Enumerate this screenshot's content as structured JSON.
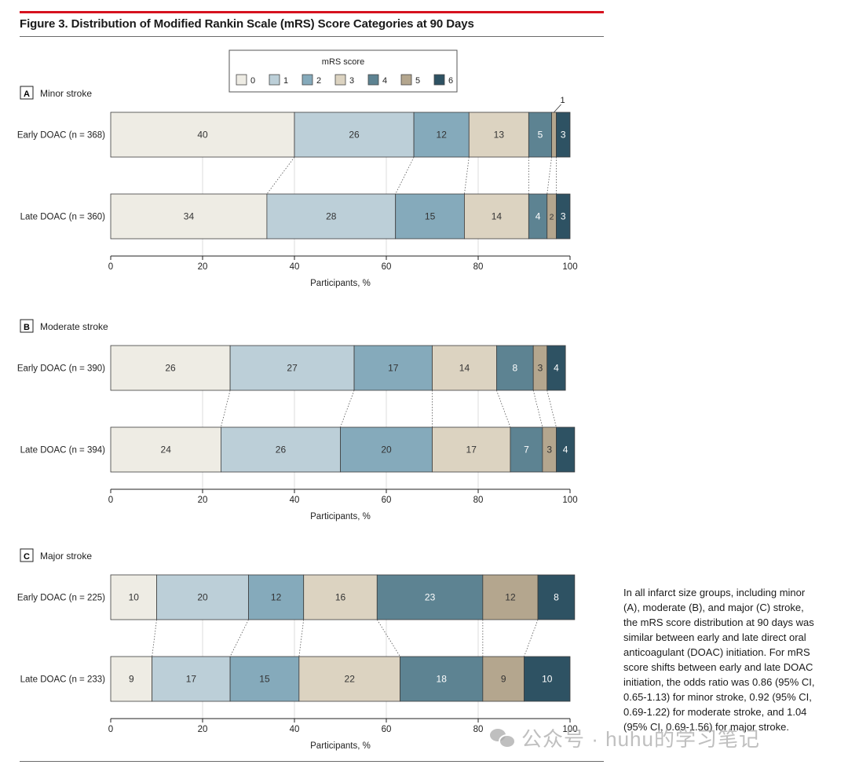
{
  "figure": {
    "title": "Figure 3. Distribution of Modified Rankin Scale (mRS) Score Categories at 90 Days"
  },
  "legend": {
    "title": "mRS score",
    "items": [
      {
        "label": "0",
        "color": "#eeece4"
      },
      {
        "label": "1",
        "color": "#bccfd8"
      },
      {
        "label": "2",
        "color": "#85aabb"
      },
      {
        "label": "3",
        "color": "#dcd3c1"
      },
      {
        "label": "4",
        "color": "#5d8392"
      },
      {
        "label": "5",
        "color": "#b4a68e"
      },
      {
        "label": "6",
        "color": "#2e5263"
      }
    ]
  },
  "chart_data": [
    {
      "type": "bar",
      "orientation": "horizontal",
      "stacked": true,
      "panel_letter": "A",
      "panel_title": "Minor stroke",
      "categories": [
        "Early DOAC (n = 368)",
        "Late DOAC (n = 360)"
      ],
      "series": [
        {
          "name": "0",
          "values": [
            40,
            34
          ]
        },
        {
          "name": "1",
          "values": [
            26,
            28
          ]
        },
        {
          "name": "2",
          "values": [
            12,
            15
          ]
        },
        {
          "name": "3",
          "values": [
            13,
            14
          ]
        },
        {
          "name": "4",
          "values": [
            5,
            4
          ]
        },
        {
          "name": "5",
          "values": [
            1,
            2
          ]
        },
        {
          "name": "6",
          "values": [
            3,
            3
          ]
        }
      ],
      "annotations": [
        {
          "text": "1",
          "series": "5",
          "category": "Early DOAC (n = 368)"
        }
      ],
      "xlabel": "Participants, %",
      "xlim": [
        0,
        100
      ],
      "xticks": [
        0,
        20,
        40,
        60,
        80,
        100
      ]
    },
    {
      "type": "bar",
      "orientation": "horizontal",
      "stacked": true,
      "panel_letter": "B",
      "panel_title": "Moderate stroke",
      "categories": [
        "Early DOAC (n = 390)",
        "Late DOAC (n = 394)"
      ],
      "series": [
        {
          "name": "0",
          "values": [
            26,
            24
          ]
        },
        {
          "name": "1",
          "values": [
            27,
            26
          ]
        },
        {
          "name": "2",
          "values": [
            17,
            20
          ]
        },
        {
          "name": "3",
          "values": [
            14,
            17
          ]
        },
        {
          "name": "4",
          "values": [
            8,
            7
          ]
        },
        {
          "name": "5",
          "values": [
            3,
            3
          ]
        },
        {
          "name": "6",
          "values": [
            4,
            4
          ]
        }
      ],
      "xlabel": "Participants, %",
      "xlim": [
        0,
        100
      ],
      "xticks": [
        0,
        20,
        40,
        60,
        80,
        100
      ]
    },
    {
      "type": "bar",
      "orientation": "horizontal",
      "stacked": true,
      "panel_letter": "C",
      "panel_title": "Major stroke",
      "categories": [
        "Early DOAC (n = 225)",
        "Late DOAC (n = 233)"
      ],
      "series": [
        {
          "name": "0",
          "values": [
            10,
            9
          ]
        },
        {
          "name": "1",
          "values": [
            20,
            17
          ]
        },
        {
          "name": "2",
          "values": [
            12,
            15
          ]
        },
        {
          "name": "3",
          "values": [
            16,
            22
          ]
        },
        {
          "name": "4",
          "values": [
            23,
            18
          ]
        },
        {
          "name": "5",
          "values": [
            12,
            9
          ]
        },
        {
          "name": "6",
          "values": [
            8,
            10
          ]
        }
      ],
      "xlabel": "Participants, %",
      "xlim": [
        0,
        100
      ],
      "xticks": [
        0,
        20,
        40,
        60,
        80,
        100
      ]
    }
  ],
  "caption": "In all infarct size groups, including minor (A), moderate (B), and major (C) stroke, the mRS score distribution at 90 days was similar between early and late direct oral anticoagulant (DOAC) initiation. For mRS score shifts between early and late DOAC initiation, the odds ratio was 0.86 (95% CI, 0.65-1.13) for minor stroke, 0.92 (95% CI, 0.69-1.22) for moderate stroke, and 1.04 (95% CI, 0.69-1.56) for major stroke.",
  "watermark": {
    "text": "公众号 · huhu的学习笔记",
    "icon": "wechat-icon"
  }
}
